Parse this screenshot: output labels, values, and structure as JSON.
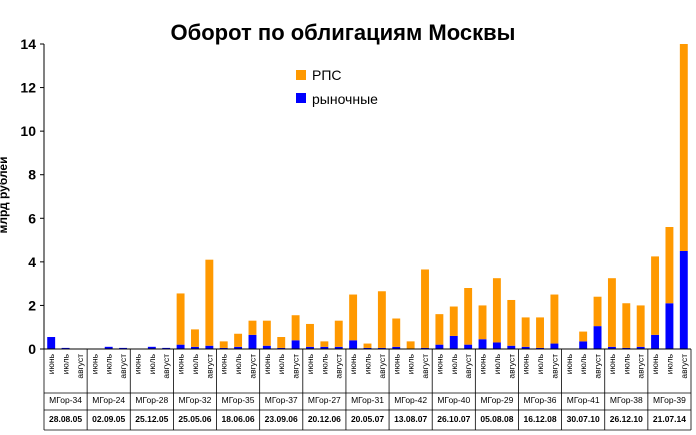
{
  "chart_data": {
    "type": "bar",
    "stacked": true,
    "title": "Оборот по облигациям Москвы",
    "ylabel": "млрд рублей",
    "ylim": [
      0,
      14
    ],
    "yticks": [
      0,
      2,
      4,
      6,
      8,
      10,
      12,
      14
    ],
    "grid": false,
    "legend_position": "top-center",
    "series": [
      {
        "name": "РПС",
        "color": "#FF9900"
      },
      {
        "name": "рыночные",
        "color": "#0000FF"
      }
    ],
    "groups": [
      {
        "bond": "МГор-34",
        "date": "28.08.05",
        "months": [
          "июнь",
          "июль",
          "август"
        ],
        "rps": [
          0,
          0,
          0
        ],
        "market": [
          0.55,
          0.05,
          0
        ]
      },
      {
        "bond": "МГор-24",
        "date": "02.09.05",
        "months": [
          "июнь",
          "июль",
          "август"
        ],
        "rps": [
          0,
          0,
          0
        ],
        "market": [
          0,
          0.1,
          0.05
        ]
      },
      {
        "bond": "МГор-28",
        "date": "25.12.05",
        "months": [
          "июнь",
          "июль",
          "август"
        ],
        "rps": [
          0,
          0,
          0
        ],
        "market": [
          0.02,
          0.1,
          0.05
        ]
      },
      {
        "bond": "МГор-32",
        "date": "25.05.06",
        "months": [
          "июнь",
          "июль",
          "август"
        ],
        "rps": [
          2.35,
          0.8,
          3.95
        ],
        "market": [
          0.2,
          0.1,
          0.15
        ]
      },
      {
        "bond": "МГор-35",
        "date": "18.06.06",
        "months": [
          "июнь",
          "июль",
          "август"
        ],
        "rps": [
          0.3,
          0.6,
          0.65
        ],
        "market": [
          0.05,
          0.1,
          0.65
        ]
      },
      {
        "bond": "МГор-37",
        "date": "23.09.06",
        "months": [
          "июнь",
          "июль",
          "август"
        ],
        "rps": [
          1.15,
          0.5,
          1.15
        ],
        "market": [
          0.15,
          0.05,
          0.4
        ]
      },
      {
        "bond": "МГор-27",
        "date": "20.12.06",
        "months": [
          "июнь",
          "июль",
          "август"
        ],
        "rps": [
          1.05,
          0.25,
          1.2
        ],
        "market": [
          0.1,
          0.1,
          0.1
        ]
      },
      {
        "bond": "МГор-31",
        "date": "20.05.07",
        "months": [
          "июнь",
          "июль",
          "август"
        ],
        "rps": [
          2.1,
          0.2,
          2.6
        ],
        "market": [
          0.4,
          0.05,
          0.05
        ]
      },
      {
        "bond": "МГор-42",
        "date": "13.08.07",
        "months": [
          "июнь",
          "июль",
          "август"
        ],
        "rps": [
          1.3,
          0.35,
          3.6
        ],
        "market": [
          0.1,
          0.0,
          0.05
        ]
      },
      {
        "bond": "МГор-40",
        "date": "26.10.07",
        "months": [
          "июнь",
          "июль",
          "август"
        ],
        "rps": [
          1.4,
          1.35,
          2.6
        ],
        "market": [
          0.2,
          0.6,
          0.2
        ]
      },
      {
        "bond": "МГор-29",
        "date": "05.08.08",
        "months": [
          "июнь",
          "июль",
          "август"
        ],
        "rps": [
          1.55,
          2.95,
          2.1
        ],
        "market": [
          0.45,
          0.3,
          0.15
        ]
      },
      {
        "bond": "МГор-36",
        "date": "16.12.08",
        "months": [
          "июнь",
          "июль",
          "август"
        ],
        "rps": [
          1.35,
          1.4,
          2.25
        ],
        "market": [
          0.1,
          0.05,
          0.25
        ]
      },
      {
        "bond": "МГор-41",
        "date": "30.07.10",
        "months": [
          "июнь",
          "июль",
          "август"
        ],
        "rps": [
          0,
          0.45,
          1.35
        ],
        "market": [
          0,
          0.35,
          1.05
        ]
      },
      {
        "bond": "МГор-38",
        "date": "26.12.10",
        "months": [
          "июнь",
          "июль",
          "август"
        ],
        "rps": [
          3.15,
          2.05,
          1.9
        ],
        "market": [
          0.1,
          0.05,
          0.1
        ]
      },
      {
        "bond": "МГор-39",
        "date": "21.07.14",
        "months": [
          "июнь",
          "июль",
          "август"
        ],
        "rps": [
          3.6,
          3.5,
          9.5
        ],
        "market": [
          0.65,
          2.1,
          4.5
        ]
      }
    ]
  }
}
